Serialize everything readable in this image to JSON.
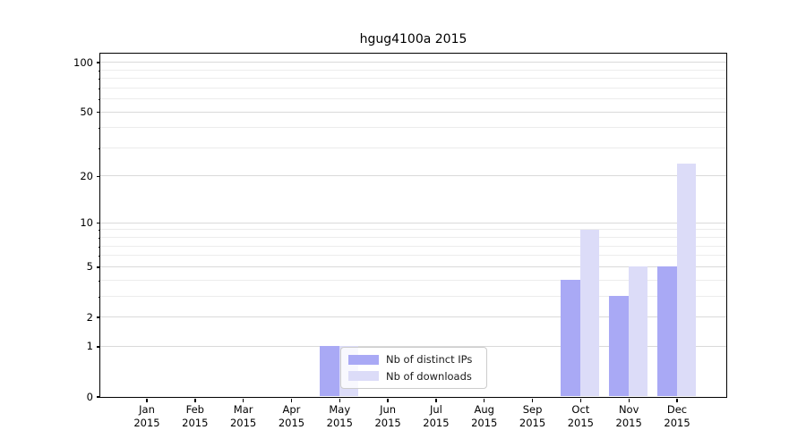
{
  "chart_data": {
    "type": "bar",
    "title": "hgug4100a 2015",
    "x": {
      "months": [
        "Jan",
        "Feb",
        "Mar",
        "Apr",
        "May",
        "Jun",
        "Jul",
        "Aug",
        "Sep",
        "Oct",
        "Nov",
        "Dec"
      ],
      "year": "2015"
    },
    "series": [
      {
        "name": "Nb of distinct IPs",
        "color": "#a9a9f5",
        "values": [
          0,
          0,
          0,
          0,
          1,
          0,
          0,
          0,
          0,
          4,
          3,
          5
        ]
      },
      {
        "name": "Nb of downloads",
        "color": "#dcdcf8",
        "values": [
          0,
          0,
          0,
          0,
          1,
          0,
          0,
          0,
          0,
          9,
          5,
          24
        ]
      }
    ],
    "y_axis": {
      "scale": "log1p",
      "major_ticks": [
        0,
        1,
        2,
        5,
        10,
        20,
        50,
        100
      ],
      "minor_ticks": [
        3,
        4,
        6,
        7,
        8,
        9,
        30,
        40,
        60,
        70,
        80,
        90
      ],
      "ylim": [
        0,
        113
      ]
    },
    "legend": {
      "entries": [
        "Nb of distinct IPs",
        "Nb of downloads"
      ],
      "position": "lower center"
    },
    "grid": true
  },
  "colors": {
    "bar_distinct_ips": "#a9a9f5",
    "bar_downloads": "#dcdcf8",
    "grid_major": "#dadada",
    "grid_minor": "#ececec",
    "axis": "#000000",
    "legend_border": "#cccccc",
    "background": "#ffffff"
  }
}
